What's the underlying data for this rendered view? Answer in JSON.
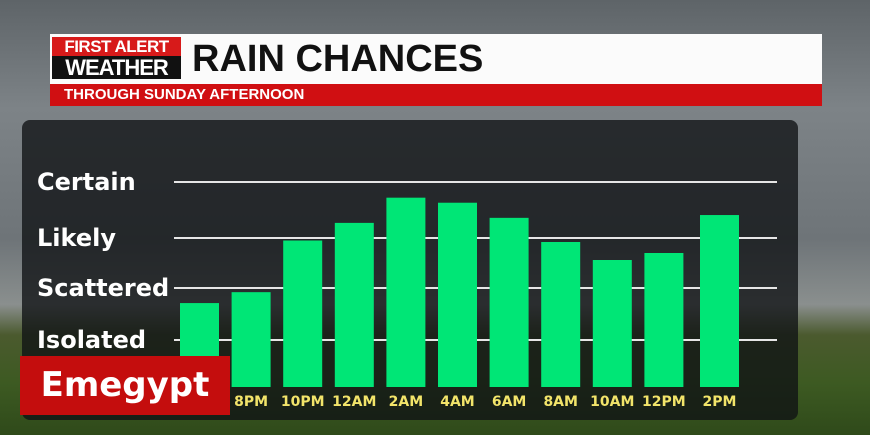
{
  "header": {
    "logo_line1": "FIRST ALERT",
    "logo_line2": "WEATHER",
    "title": "RAIN CHANCES",
    "subtitle": "THROUGH SUNDAY AFTERNOON"
  },
  "watermark": "Emegypt",
  "chart_data": {
    "type": "bar",
    "title": "RAIN CHANCES",
    "subtitle": "THROUGH SUNDAY AFTERNOON",
    "y_levels": [
      "Isolated",
      "Scattered",
      "Likely",
      "Certain"
    ],
    "ylim": [
      0,
      4
    ],
    "grid": true,
    "categories": [
      "",
      "8PM",
      "10PM",
      "12AM",
      "2AM",
      "4AM",
      "6AM",
      "8AM",
      "10AM",
      "12PM",
      "2PM"
    ],
    "values": [
      1.71,
      1.92,
      2.95,
      3.27,
      3.72,
      3.63,
      3.36,
      2.92,
      2.56,
      2.7,
      3.41
    ],
    "bar_color": "#00e676",
    "label_color": "#f2e46a"
  }
}
